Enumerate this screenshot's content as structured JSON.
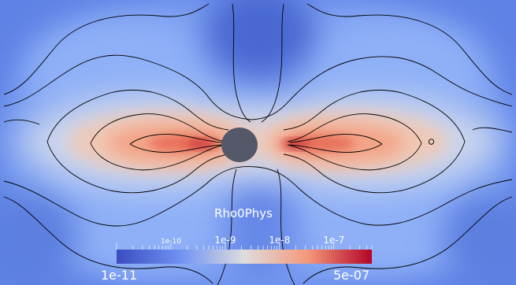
{
  "field_name": "Rho0Phys",
  "colorbar": {
    "min_label": "1e-11",
    "max_label": "5e-07",
    "ticks": [
      {
        "label": "1e-10",
        "value": 1e-10
      },
      {
        "label": "1e-9",
        "value": 1e-09
      },
      {
        "label": "1e-8",
        "value": 1e-08
      },
      {
        "label": "1e-7",
        "value": 1e-07
      }
    ],
    "range": [
      1e-11,
      5e-07
    ],
    "scale": "log",
    "colors": [
      "#3b4cc0",
      "#dddddd",
      "#b40426"
    ]
  },
  "central_object_color": "#545868",
  "contour_color": "#000000"
}
